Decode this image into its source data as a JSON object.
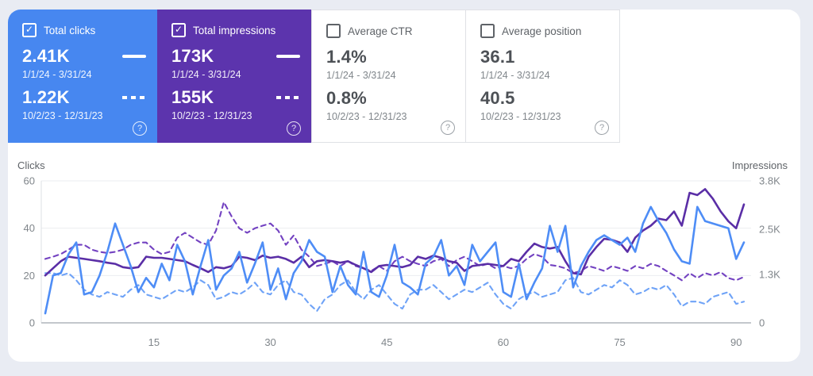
{
  "cards": [
    {
      "id": "total-clicks",
      "label": "Total clicks",
      "checked": true,
      "bg": "#4787f0",
      "current": {
        "value": "2.41K",
        "range": "1/1/24 - 3/31/24"
      },
      "previous": {
        "value": "1.22K",
        "range": "10/2/23 - 12/31/23"
      },
      "help_icon": "?"
    },
    {
      "id": "total-impressions",
      "label": "Total impressions",
      "checked": true,
      "bg": "#5c34ad",
      "current": {
        "value": "173K",
        "range": "1/1/24 - 3/31/24"
      },
      "previous": {
        "value": "155K",
        "range": "10/2/23 - 12/31/23"
      },
      "help_icon": "?"
    },
    {
      "id": "average-ctr",
      "label": "Average CTR",
      "checked": false,
      "bg": "#ffffff",
      "current": {
        "value": "1.4%",
        "range": "1/1/24 - 3/31/24"
      },
      "previous": {
        "value": "0.8%",
        "range": "10/2/23 - 12/31/23"
      },
      "help_icon": "?"
    },
    {
      "id": "average-position",
      "label": "Average position",
      "checked": false,
      "bg": "#ffffff",
      "current": {
        "value": "36.1",
        "range": "1/1/24 - 3/31/24"
      },
      "previous": {
        "value": "40.5",
        "range": "10/2/23 - 12/31/23"
      },
      "help_icon": "?"
    }
  ],
  "chart_data": {
    "type": "line",
    "grid": true,
    "legend_position": "none",
    "left_axis": {
      "title": "Clicks",
      "ticks": [
        0,
        20,
        40,
        60
      ],
      "max": 60
    },
    "right_axis": {
      "title": "Impressions",
      "tick_labels": [
        "0",
        "1.3K",
        "2.5K",
        "3.8K"
      ],
      "tick_values": [
        0,
        1300,
        2500,
        3800
      ],
      "max": 3800
    },
    "x_axis": {
      "ticks": [
        15,
        30,
        45,
        60,
        75,
        90
      ],
      "range": [
        1,
        91
      ],
      "unit": "day of quarter"
    },
    "series": [
      {
        "name": "Impressions (10/2/23 - 12/31/23)",
        "axis": "right",
        "style": "dashed",
        "color": "#7342c1",
        "values": [
          1710,
          1770,
          1840,
          1960,
          2090,
          2090,
          1960,
          1900,
          1870,
          1900,
          1960,
          2090,
          2150,
          2150,
          1960,
          1840,
          1900,
          2280,
          2410,
          2280,
          2150,
          2090,
          2470,
          3230,
          2850,
          2530,
          2410,
          2530,
          2600,
          2660,
          2470,
          2090,
          2340,
          1960,
          1770,
          1520,
          1580,
          1650,
          1520,
          1650,
          1520,
          1460,
          1390,
          1520,
          1390,
          1650,
          1770,
          1650,
          1580,
          1520,
          1650,
          1710,
          1520,
          1680,
          1770,
          1650,
          1520,
          1580,
          1460,
          1520,
          1460,
          1520,
          1710,
          1840,
          1770,
          1550,
          1520,
          1460,
          1330,
          1390,
          1520,
          1460,
          1390,
          1520,
          1460,
          1390,
          1520,
          1460,
          1580,
          1520,
          1390,
          1270,
          1140,
          1330,
          1200,
          1330,
          1270,
          1360,
          1200,
          1140,
          1230
        ]
      },
      {
        "name": "Clicks (10/2/23 - 12/31/23)",
        "axis": "left",
        "style": "dashed",
        "color": "#6fa3f7",
        "values": [
          21,
          21,
          20,
          21,
          18,
          14,
          12,
          11,
          13,
          12,
          11,
          14,
          16,
          12,
          11,
          10,
          12,
          14,
          13,
          15,
          18,
          16,
          10,
          11,
          13,
          12,
          14,
          17,
          13,
          12,
          16,
          18,
          13,
          12,
          8,
          5,
          10,
          12,
          16,
          18,
          13,
          10,
          14,
          16,
          12,
          8,
          6,
          12,
          14,
          14,
          16,
          13,
          10,
          12,
          14,
          13,
          15,
          17,
          12,
          8,
          6,
          10,
          12,
          13,
          11,
          12,
          13,
          18,
          19,
          13,
          12,
          14,
          16,
          15,
          18,
          16,
          12,
          13,
          15,
          14,
          16,
          12,
          7,
          9,
          9,
          8,
          11,
          12,
          13,
          8,
          9
        ]
      },
      {
        "name": "Impressions (1/1/24 - 3/31/24)",
        "axis": "right",
        "style": "solid",
        "color": "#5a2ea6",
        "values": [
          1270,
          1460,
          1650,
          1770,
          1740,
          1710,
          1680,
          1650,
          1610,
          1580,
          1490,
          1460,
          1490,
          1770,
          1740,
          1740,
          1710,
          1680,
          1650,
          1550,
          1460,
          1360,
          1490,
          1460,
          1520,
          1770,
          1740,
          1680,
          1800,
          1740,
          1770,
          1710,
          1610,
          1770,
          1490,
          1650,
          1680,
          1650,
          1610,
          1650,
          1550,
          1460,
          1360,
          1520,
          1550,
          1520,
          1490,
          1550,
          1770,
          1710,
          1800,
          1740,
          1650,
          1610,
          1390,
          1520,
          1550,
          1580,
          1550,
          1520,
          1710,
          1650,
          1900,
          2120,
          2030,
          1990,
          2030,
          1650,
          1330,
          1300,
          1770,
          2030,
          2250,
          2220,
          2150,
          1900,
          2280,
          2470,
          2600,
          2790,
          2750,
          2980,
          2600,
          3480,
          3420,
          3580,
          3320,
          2980,
          2720,
          2530,
          3170
        ]
      },
      {
        "name": "Clicks (1/1/24 - 3/31/24)",
        "axis": "left",
        "style": "solid",
        "color": "#4e8df6",
        "values": [
          4,
          20,
          21,
          29,
          34,
          12,
          13,
          20,
          30,
          42,
          33,
          24,
          13,
          19,
          15,
          25,
          18,
          33,
          26,
          12,
          24,
          35,
          14,
          20,
          23,
          30,
          17,
          25,
          34,
          14,
          23,
          10,
          21,
          26,
          35,
          30,
          28,
          13,
          24,
          16,
          12,
          30,
          13,
          11,
          20,
          33,
          17,
          15,
          12,
          25,
          28,
          35,
          20,
          24,
          16,
          33,
          26,
          30,
          34,
          13,
          11,
          25,
          10,
          17,
          23,
          41,
          30,
          41,
          15,
          24,
          30,
          35,
          37,
          35,
          33,
          36,
          30,
          42,
          49,
          43,
          38,
          31,
          26,
          25,
          49,
          43,
          42,
          41,
          40,
          27,
          34
        ]
      }
    ]
  }
}
